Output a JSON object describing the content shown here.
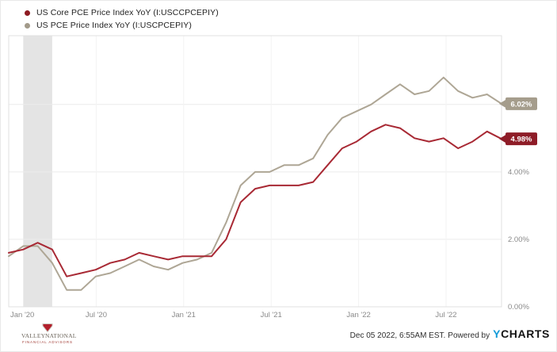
{
  "legend": {
    "items": [
      {
        "label": "US Core PCE Price Index YoY (I:USCCPCEPIY)",
        "color": "#8e1b22"
      },
      {
        "label": "US PCE Price Index YoY (I:USCPCEPIY)",
        "color": "#a29a8a"
      }
    ]
  },
  "chart_data": {
    "type": "line",
    "title": "",
    "xlabel": "",
    "ylabel": "",
    "x": [
      "Dec '19",
      "Jan '20",
      "Feb '20",
      "Mar '20",
      "Apr '20",
      "May '20",
      "Jun '20",
      "Jul '20",
      "Aug '20",
      "Sep '20",
      "Oct '20",
      "Nov '20",
      "Dec '20",
      "Jan '21",
      "Feb '21",
      "Mar '21",
      "Apr '21",
      "May '21",
      "Jun '21",
      "Jul '21",
      "Aug '21",
      "Sep '21",
      "Oct '21",
      "Nov '21",
      "Dec '21",
      "Jan '22",
      "Feb '22",
      "Mar '22",
      "Apr '22",
      "May '22",
      "Jun '22",
      "Jul '22",
      "Aug '22",
      "Sep '22",
      "Oct '22"
    ],
    "series": [
      {
        "name": "US Core PCE Price Index YoY",
        "color": "#a82934",
        "last_label": "4.98%",
        "badge_color": "#8e1c27",
        "values": [
          1.6,
          1.7,
          1.9,
          1.7,
          0.9,
          1.0,
          1.1,
          1.3,
          1.4,
          1.6,
          1.5,
          1.4,
          1.5,
          1.5,
          1.5,
          2.0,
          3.1,
          3.5,
          3.6,
          3.6,
          3.6,
          3.7,
          4.2,
          4.7,
          4.9,
          5.2,
          5.4,
          5.3,
          5.0,
          4.9,
          5.0,
          4.7,
          4.9,
          5.2,
          4.98
        ]
      },
      {
        "name": "US PCE Price Index YoY",
        "color": "#aea695",
        "last_label": "6.02%",
        "badge_color": "#a59d8c",
        "values": [
          1.5,
          1.8,
          1.8,
          1.3,
          0.5,
          0.5,
          0.9,
          1.0,
          1.2,
          1.4,
          1.2,
          1.1,
          1.3,
          1.4,
          1.6,
          2.5,
          3.6,
          4.0,
          4.0,
          4.2,
          4.2,
          4.4,
          5.1,
          5.6,
          5.8,
          6.0,
          6.3,
          6.6,
          6.3,
          6.4,
          6.8,
          6.4,
          6.2,
          6.3,
          6.02
        ]
      }
    ],
    "x_tick_labels": [
      "Jan '20",
      "Jul '20",
      "Jan '21",
      "Jul '21",
      "Jan '22",
      "Jul '22"
    ],
    "y_ticks": [
      {
        "value": 0,
        "label": "0.00%"
      },
      {
        "value": 2,
        "label": "2.00%"
      },
      {
        "value": 4,
        "label": "4.00%"
      },
      {
        "value": 6,
        "label": ""
      }
    ],
    "ylim": [
      0,
      8.04
    ],
    "grid": true,
    "legend_position": "top-left",
    "recession_band": {
      "from": "Feb '20",
      "to": "Apr '20",
      "draw_indices": [
        1,
        3
      ]
    }
  },
  "footer": {
    "logo_name": "VALLEY NATIONAL",
    "logo_sub": "FINANCIAL ADVISORS",
    "timestamp": "Dec 05 2022, 6:55AM EST.",
    "powered_by": "Powered by",
    "brand_y": "Y",
    "brand_rest": "CHARTS"
  }
}
